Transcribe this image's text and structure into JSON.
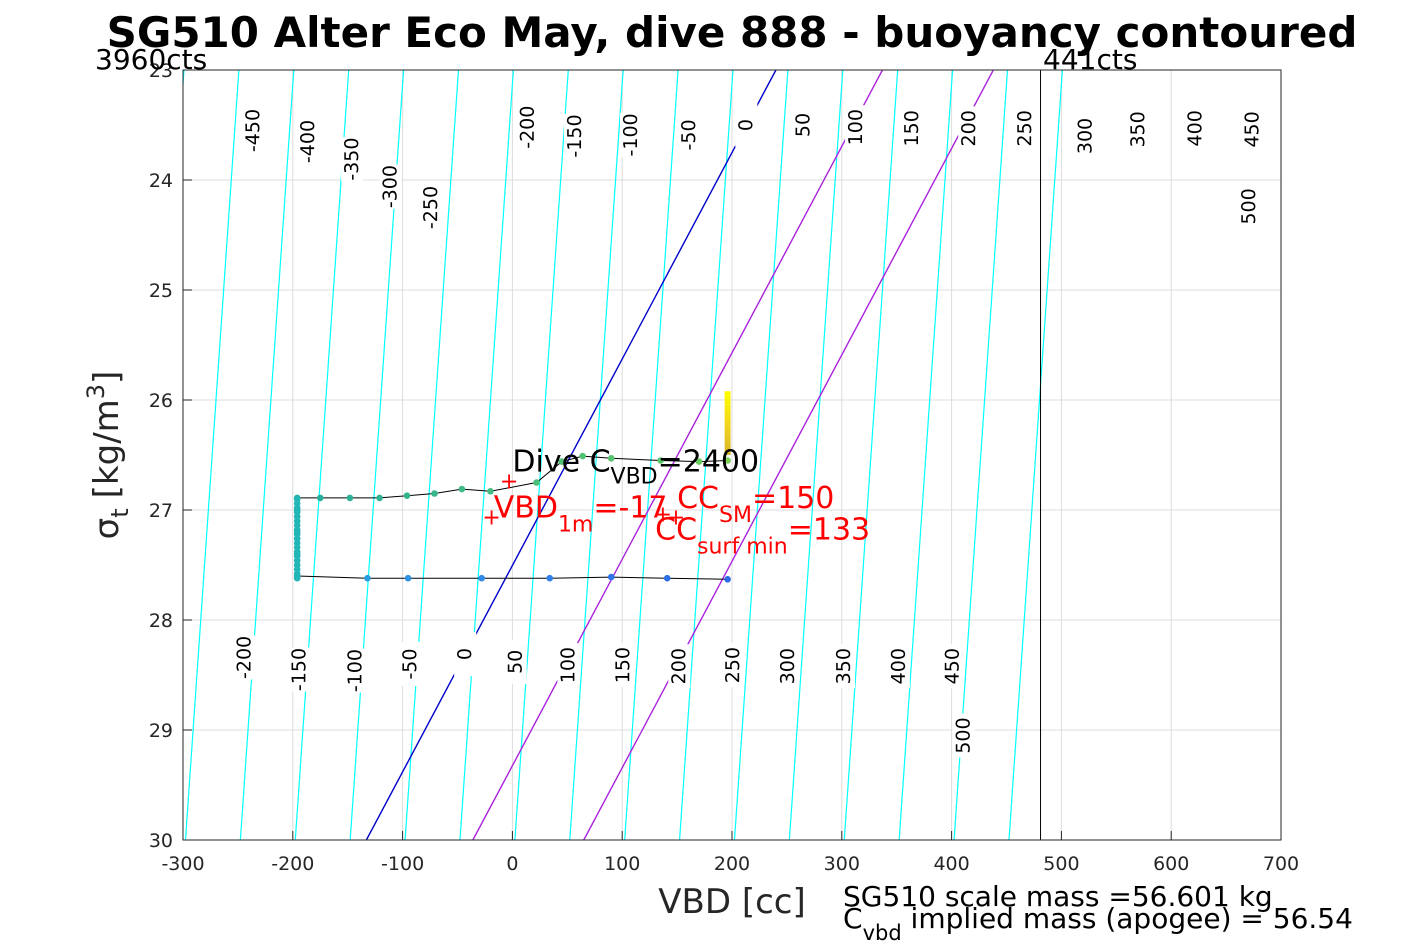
{
  "chart_data": {
    "type": "scatter",
    "title": "SG510 Alter Eco May, dive 888 - buoyancy contoured",
    "xlabel": "VBD [cc]",
    "ylabel": {
      "main": "σ",
      "sub": "t",
      "unit": "[kg/m",
      "sup": "3",
      "close": "]"
    },
    "xlim": [
      -300,
      700
    ],
    "ylim": [
      23,
      30
    ],
    "y_reversed": true,
    "grid": true,
    "x_ticks": [
      -300,
      -200,
      -100,
      0,
      100,
      200,
      300,
      400,
      500,
      600,
      700
    ],
    "x_tick_labels": [
      "-300",
      "-200",
      "-100",
      "0",
      "100",
      "200",
      "300",
      "400",
      "500",
      "600",
      "700"
    ],
    "y_ticks": [
      23,
      24,
      25,
      26,
      27,
      28,
      29,
      30
    ],
    "y_tick_labels": [
      "23",
      "24",
      "25",
      "26",
      "27",
      "28",
      "29",
      "30"
    ],
    "corner_labels": {
      "left": "3960cts",
      "right": "441cts"
    },
    "vertical_line_x": 481,
    "contour_slope": 6.95,
    "contours": {
      "color": "#00ffff",
      "anchors_at_y25": [
        -463,
        -413,
        -363,
        -313,
        -263,
        -213,
        -163,
        -113,
        -63,
        -13,
        37,
        87,
        137,
        187,
        237,
        287,
        337,
        387,
        437,
        487
      ],
      "top_labels": [
        {
          "text": "-450",
          "x": -236,
          "y": 23.55
        },
        {
          "text": "-400",
          "x": -186,
          "y": 23.65
        },
        {
          "text": "-350",
          "x": -146,
          "y": 23.81
        },
        {
          "text": "-300",
          "x": -111,
          "y": 24.06
        },
        {
          "text": "-250",
          "x": -74,
          "y": 24.25
        },
        {
          "text": "-200",
          "x": 14,
          "y": 23.52
        },
        {
          "text": "-150",
          "x": 57,
          "y": 23.6
        },
        {
          "text": "-100",
          "x": 108,
          "y": 23.59
        },
        {
          "text": "-50",
          "x": 161,
          "y": 23.59
        },
        {
          "text": "0",
          "x": 213,
          "y": 23.5
        },
        {
          "text": "50",
          "x": 265,
          "y": 23.5
        },
        {
          "text": "100",
          "x": 313,
          "y": 23.52
        },
        {
          "text": "150",
          "x": 364,
          "y": 23.53
        },
        {
          "text": "200",
          "x": 416,
          "y": 23.53
        },
        {
          "text": "250",
          "x": 467,
          "y": 23.53
        },
        {
          "text": "300",
          "x": 522,
          "y": 23.6
        },
        {
          "text": "350",
          "x": 570,
          "y": 23.54
        },
        {
          "text": "400",
          "x": 622,
          "y": 23.53
        },
        {
          "text": "450",
          "x": 674,
          "y": 23.54
        },
        {
          "text": "500",
          "x": 671,
          "y": 24.24
        }
      ],
      "bottom_labels": [
        {
          "text": "-200",
          "x": -244,
          "y": 28.34
        },
        {
          "text": "-150",
          "x": -194,
          "y": 28.45
        },
        {
          "text": "-100",
          "x": -143,
          "y": 28.46
        },
        {
          "text": "-50",
          "x": -93,
          "y": 28.4
        },
        {
          "text": "0",
          "x": -43,
          "y": 28.31
        },
        {
          "text": "50",
          "x": 3,
          "y": 28.38
        },
        {
          "text": "100",
          "x": 51,
          "y": 28.41
        },
        {
          "text": "150",
          "x": 101,
          "y": 28.41
        },
        {
          "text": "200",
          "x": 152,
          "y": 28.42
        },
        {
          "text": "250",
          "x": 201,
          "y": 28.41
        },
        {
          "text": "300",
          "x": 251,
          "y": 28.42
        },
        {
          "text": "350",
          "x": 302,
          "y": 28.42
        },
        {
          "text": "400",
          "x": 352,
          "y": 28.42
        },
        {
          "text": "450",
          "x": 401,
          "y": 28.42
        },
        {
          "text": "500",
          "x": 411,
          "y": 29.05
        }
      ]
    },
    "special_contours": [
      {
        "name": "0",
        "color": "#0000cc",
        "x_bottom": -133,
        "x_top": 240
      },
      {
        "name": "SM",
        "color": "#aa22dd",
        "x_bottom": -36,
        "x_top": 337
      },
      {
        "name": "surf min",
        "color": "#aa22dd",
        "x_bottom": 65,
        "x_top": 438
      }
    ],
    "dive_series": {
      "line_color": "#000000",
      "points": [
        {
          "x": 196,
          "y": 26.55,
          "c": "#7fd15a"
        },
        {
          "x": 170,
          "y": 26.56,
          "c": "#6acb60"
        },
        {
          "x": 135,
          "y": 26.55,
          "c": "#5cc66a"
        },
        {
          "x": 90,
          "y": 26.53,
          "c": "#55c36f"
        },
        {
          "x": 64,
          "y": 26.51,
          "c": "#52c274"
        },
        {
          "x": 45,
          "y": 26.56,
          "c": "#4ebf77"
        },
        {
          "x": 22,
          "y": 26.75,
          "c": "#4dbe7a"
        },
        {
          "x": -20,
          "y": 26.83,
          "c": "#44bb80"
        },
        {
          "x": -46,
          "y": 26.81,
          "c": "#3fb985"
        },
        {
          "x": -71,
          "y": 26.85,
          "c": "#38b68b"
        },
        {
          "x": -96,
          "y": 26.87,
          "c": "#34b48e"
        },
        {
          "x": -121,
          "y": 26.89,
          "c": "#30b392"
        },
        {
          "x": -148,
          "y": 26.89,
          "c": "#2cb196"
        },
        {
          "x": -175,
          "y": 26.89,
          "c": "#27ae9a"
        },
        {
          "x": -196,
          "y": 26.89,
          "c": "#23ad9e"
        },
        {
          "x": -196,
          "y": 27.0,
          "c": "#20b0a8"
        },
        {
          "x": -196,
          "y": 27.2,
          "c": "#1fb4b2"
        },
        {
          "x": -196,
          "y": 27.4,
          "c": "#1eb7bb"
        },
        {
          "x": -196,
          "y": 27.6,
          "c": "#21a8d8"
        },
        {
          "x": -132,
          "y": 27.62,
          "c": "#2a9de0"
        },
        {
          "x": -95,
          "y": 27.62,
          "c": "#2e92e4"
        },
        {
          "x": -28,
          "y": 27.62,
          "c": "#3189e8"
        },
        {
          "x": 34,
          "y": 27.62,
          "c": "#317fe9"
        },
        {
          "x": 90,
          "y": 27.61,
          "c": "#2f75e9"
        },
        {
          "x": 141,
          "y": 27.62,
          "c": "#2d6fe8"
        },
        {
          "x": 196,
          "y": 27.63,
          "c": "#2b69e6"
        }
      ],
      "surface_bar": {
        "x": 196,
        "y_top": 25.92,
        "y_bottom": 26.5
      }
    },
    "annotations": {
      "dive_cvbd": {
        "pre": "Dive C",
        "sub": "VBD",
        "post": "=2400",
        "x": 0,
        "y": 26.65
      },
      "vbd_1m": {
        "pre": "VBD",
        "sub": "1m",
        "post": "=-17",
        "x": -17,
        "y": 27.07
      },
      "cc_sm": {
        "pre": "CC",
        "sub": "SM",
        "post": "=150",
        "x": 150,
        "y": 26.98
      },
      "cc_surf": {
        "pre": "CC",
        "sub": "surf min",
        "post": "=133",
        "x": 130,
        "y": 27.27
      },
      "plus_markers": [
        {
          "x": -3,
          "y": 26.74
        },
        {
          "x": -19,
          "y": 27.07
        },
        {
          "x": 149,
          "y": 27.07
        },
        {
          "x": 137,
          "y": 27.04
        }
      ]
    },
    "footer": {
      "line1": "SG510 scale mass =56.601 kg",
      "line2_pre": "C",
      "line2_sub": "vbd",
      "line2_post": " implied mass (apogee) = 56.54"
    }
  }
}
